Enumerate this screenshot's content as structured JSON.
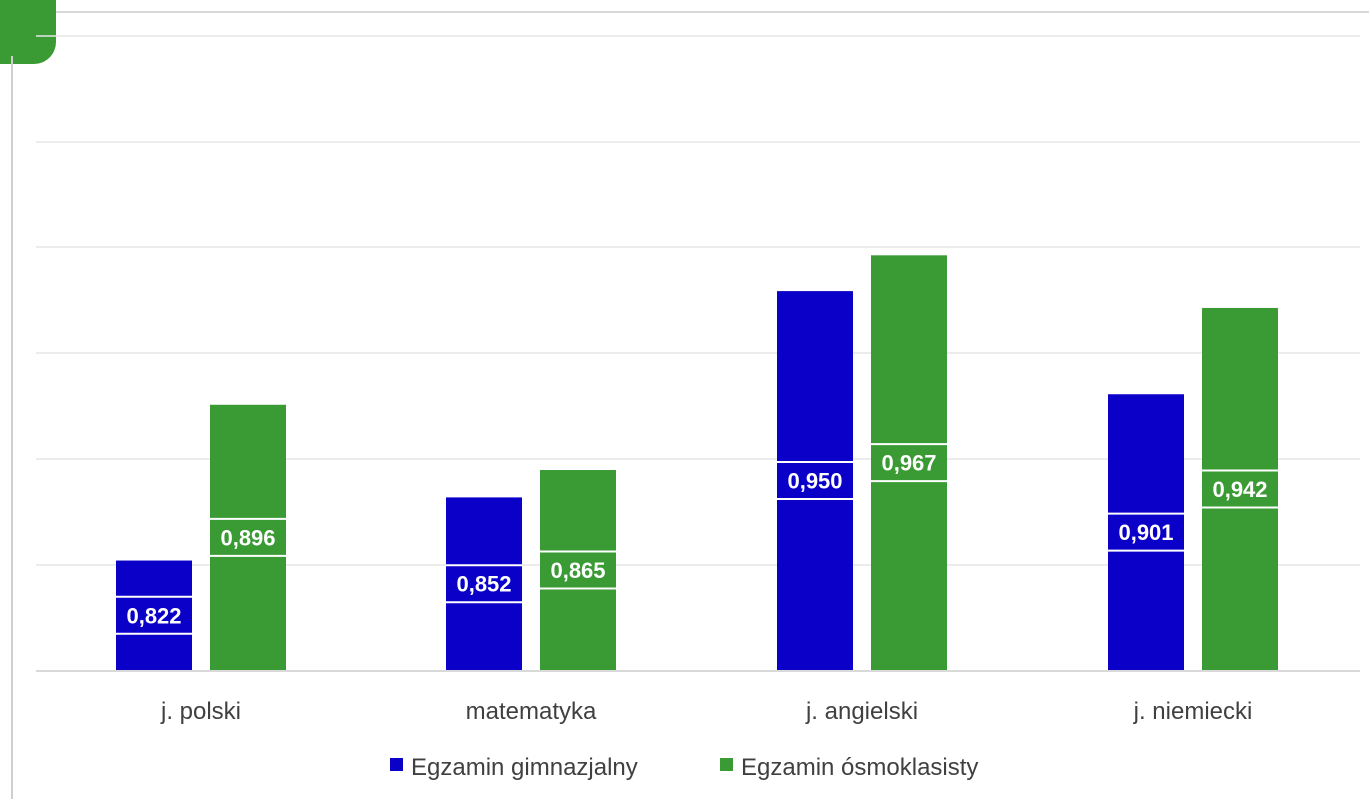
{
  "chart_data": {
    "type": "bar",
    "categories": [
      "j. polski",
      "matematyka",
      "j. angielski",
      "j. niemiecki"
    ],
    "series": [
      {
        "name": "Egzamin gimnazjalny",
        "color": "#0a00c8",
        "values": [
          0.822,
          0.852,
          0.95,
          0.901
        ]
      },
      {
        "name": "Egzamin ósmoklasisty",
        "color": "#3a9a34",
        "values": [
          0.896,
          0.865,
          0.967,
          0.942
        ]
      }
    ],
    "data_labels": {
      "Egzamin gimnazjalny": [
        "0,822",
        "0,852",
        "0,950",
        "0,901"
      ],
      "Egzamin ósmoklasisty": [
        "0,896",
        "0,865",
        "0,967",
        "0,942"
      ]
    },
    "ylim": [
      0.77,
      1.02
    ],
    "grid": true,
    "legend": "bottom",
    "title": "",
    "xlabel": "",
    "ylabel": ""
  },
  "colors": {
    "accent_tab": "#3a9a34",
    "gridline": "#e6e6e6",
    "baseline": "#d9d9d9"
  }
}
